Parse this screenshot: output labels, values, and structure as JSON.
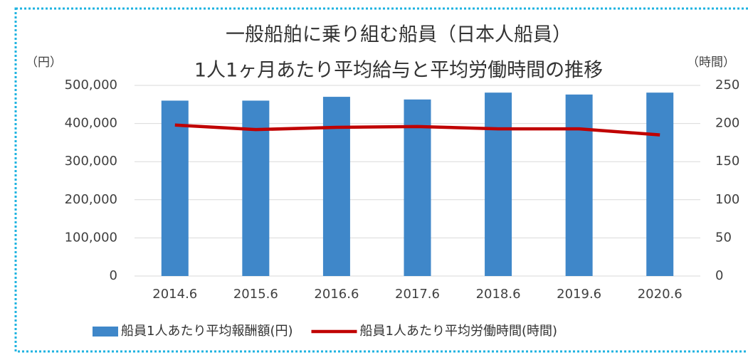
{
  "chart_data": {
    "type": "bar_line",
    "title": [
      "一般船舶に乗り組む船員（日本人船員）",
      "1人1ヶ月あたり平均給与と平均労働時間の推移"
    ],
    "y_label": "（円）",
    "y2_label": "（時間）",
    "categories": [
      "2014.6",
      "2015.6",
      "2016.6",
      "2017.6",
      "2018.6",
      "2019.6",
      "2020.6"
    ],
    "series": [
      {
        "name": "船員1人あたり平均報酬額(円)",
        "type": "bar",
        "color": "#3f87c9",
        "values": [
          460000,
          460000,
          470000,
          463000,
          481000,
          476000,
          481000
        ]
      },
      {
        "name": "船員1人あたり平均労働時間(時間)",
        "type": "line",
        "axis": "y2",
        "color": "#c00000",
        "values": [
          198,
          192,
          195,
          196,
          193,
          193,
          185
        ]
      }
    ],
    "ylim": [
      0,
      500000
    ],
    "yticks": [
      0,
      {
        "value": 100000,
        "label": "100,000"
      },
      {
        "value": 200000,
        "label": "200,000"
      },
      {
        "value": 300000,
        "label": "300,000"
      },
      {
        "value": 400000,
        "label": "400,000"
      },
      {
        "value": 500000,
        "label": "500,000"
      }
    ],
    "y2lim": [
      0,
      250
    ],
    "y2ticks": [
      0,
      50,
      100,
      150,
      200,
      250
    ],
    "grid": true,
    "legend": "bottom"
  }
}
